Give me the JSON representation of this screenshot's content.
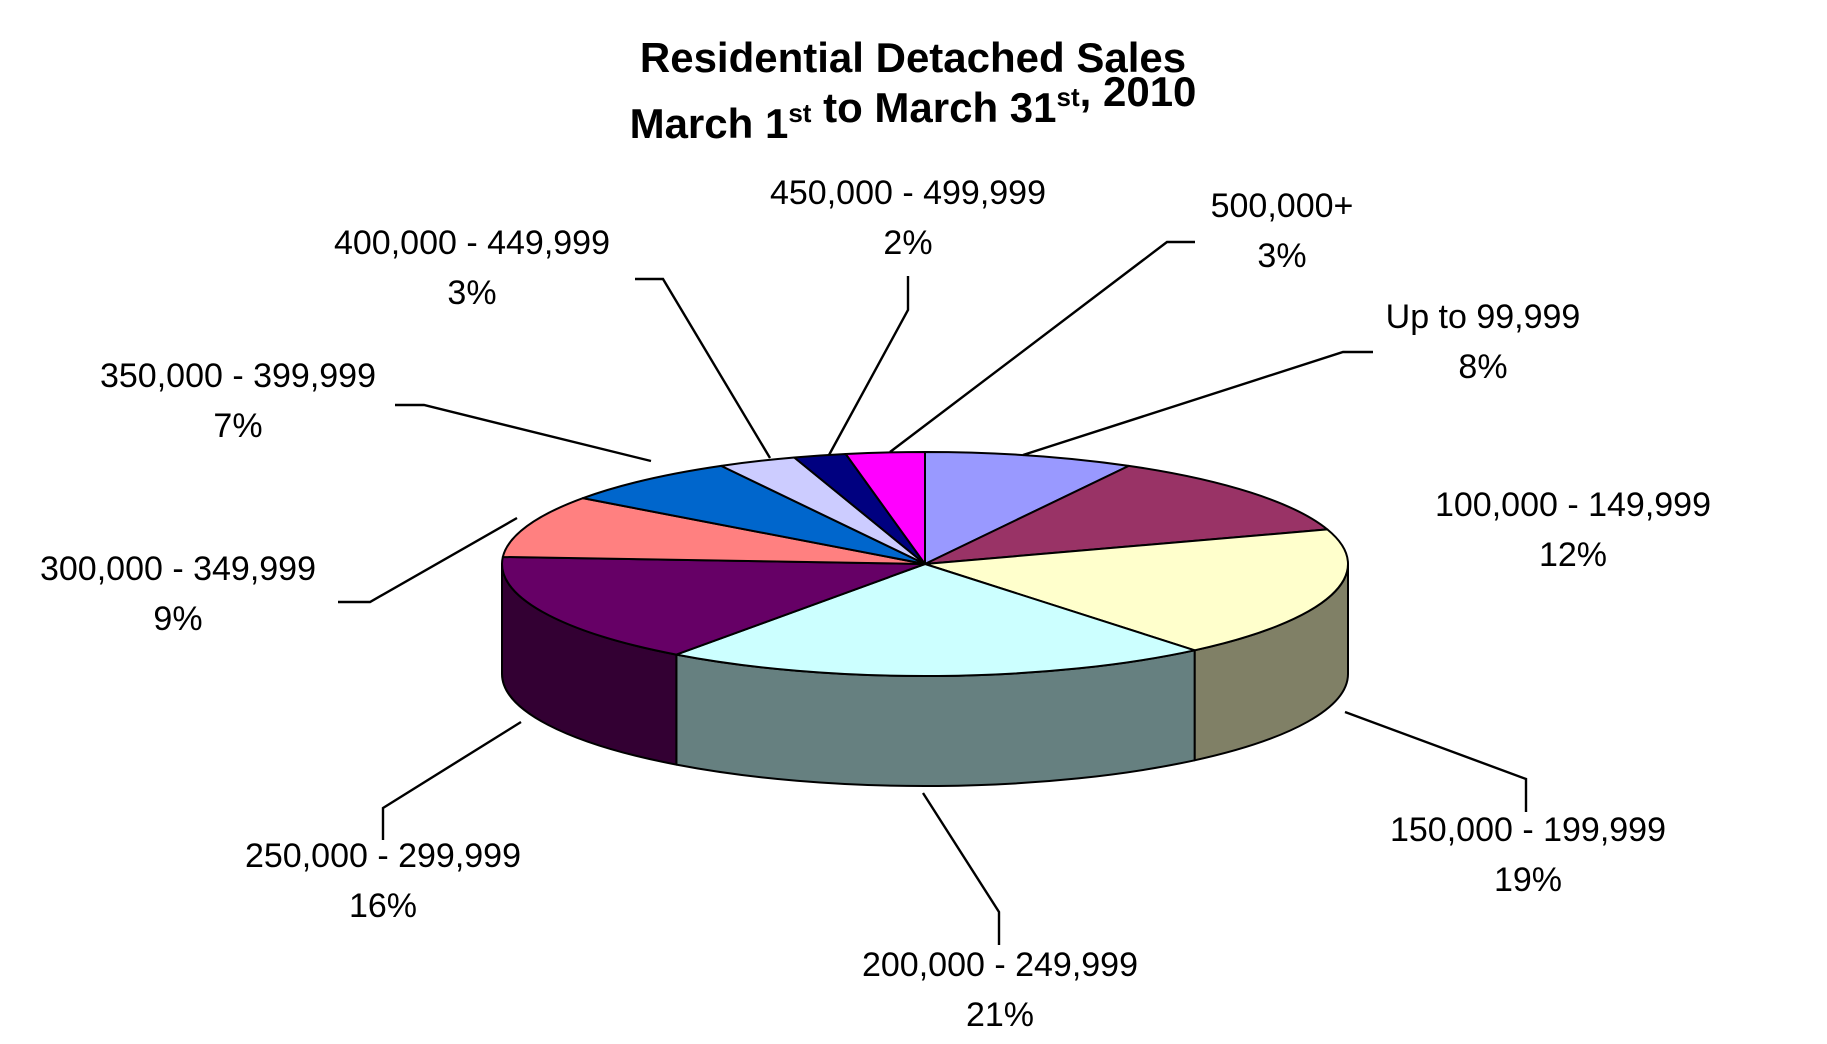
{
  "chart_data": {
    "type": "pie",
    "style": "3d",
    "title_lines": [
      {
        "parts": [
          {
            "text": "Residential Detached Sales",
            "sup": ""
          }
        ]
      },
      {
        "parts": [
          {
            "text": "March 1",
            "sup": "st"
          },
          {
            "text": " to March 31",
            "sup": "st"
          },
          {
            "text": ", 2010",
            "sup": ""
          }
        ]
      }
    ],
    "slices": [
      {
        "label": "Up to 99,999",
        "value": 8,
        "value_label": "8%",
        "color": "#9999ff",
        "side_color": "#7373bf"
      },
      {
        "label": "100,000 - 149,999",
        "value": 12,
        "value_label": "12%",
        "color": "#993366",
        "side_color": "#5c1f3d"
      },
      {
        "label": "150,000 - 199,999",
        "value": 19,
        "value_label": "19%",
        "color": "#ffffcc",
        "side_color": "#808066"
      },
      {
        "label": "200,000 - 249,999",
        "value": 21,
        "value_label": "21%",
        "color": "#ccffff",
        "side_color": "#668080"
      },
      {
        "label": "250,000 - 299,999",
        "value": 16,
        "value_label": "16%",
        "color": "#660066",
        "side_color": "#330033"
      },
      {
        "label": "300,000 - 349,999",
        "value": 9,
        "value_label": "9%",
        "color": "#ff8080",
        "side_color": "#b35a5a"
      },
      {
        "label": "350,000 - 399,999",
        "value": 7,
        "value_label": "7%",
        "color": "#0066cc",
        "side_color": "#004080"
      },
      {
        "label": "400,000 - 449,999",
        "value": 3,
        "value_label": "3%",
        "color": "#ccccff",
        "side_color": "#8f8fb3"
      },
      {
        "label": "450,000 - 499,999",
        "value": 2,
        "value_label": "2%",
        "color": "#000080",
        "side_color": "#000050"
      },
      {
        "label": "500,000+",
        "value": 3,
        "value_label": "3%",
        "color": "#ff00ff",
        "side_color": "#b300b3"
      }
    ],
    "legend": "none",
    "data_labels": "category and percentage, with leader lines"
  }
}
